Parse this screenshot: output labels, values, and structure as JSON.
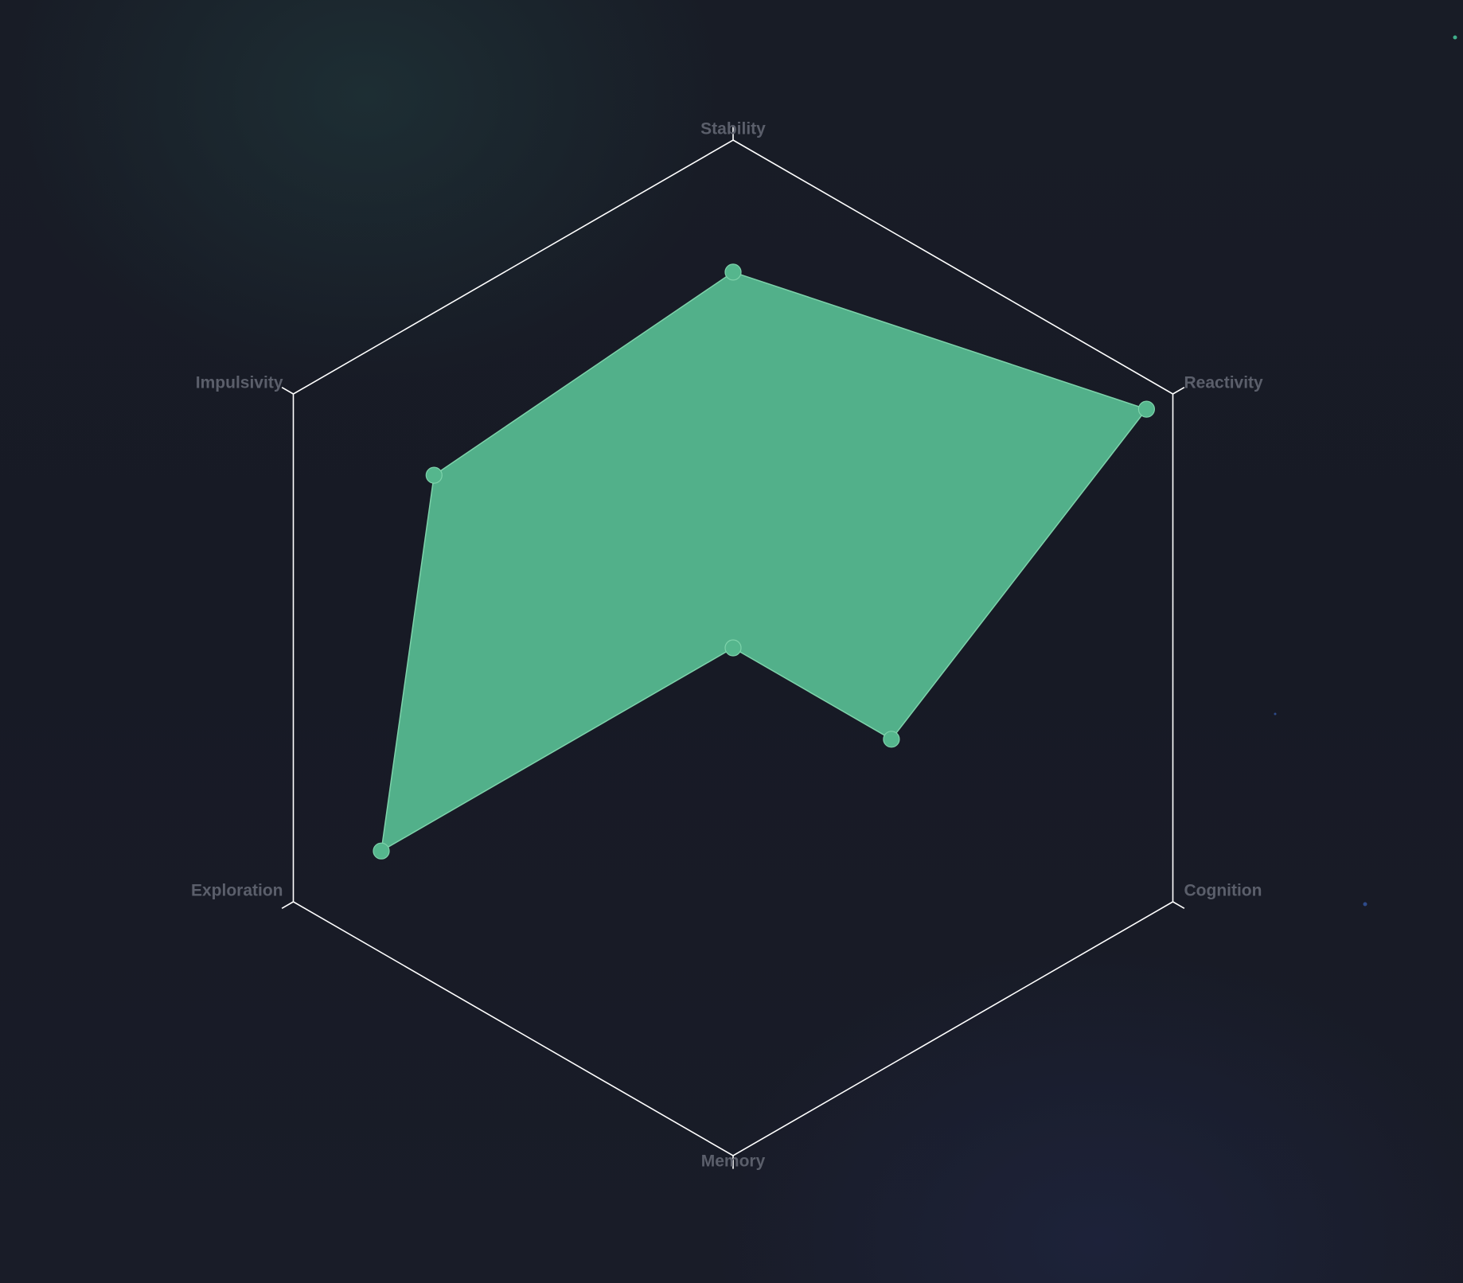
{
  "chart_data": {
    "type": "radar",
    "title": "",
    "axes": [
      "Stability",
      "Reactivity",
      "Cognition",
      "Memory",
      "Exploration",
      "Impulsivity"
    ],
    "series": [
      {
        "values": [
          0.74,
          0.94,
          0.36,
          0.0,
          0.8,
          0.68
        ]
      }
    ],
    "range": [
      0,
      1
    ],
    "grid": "single outer hexagon",
    "legend": "none"
  },
  "colors": {
    "background": "#171a25",
    "grid": "#ffffff",
    "fill": "#55b68d",
    "stroke": "#7ed3ab",
    "point": "#55b68d",
    "label": "#5b5f6b",
    "speck_green": "#3fae8a",
    "speck_blue": "#2e4b8a"
  }
}
